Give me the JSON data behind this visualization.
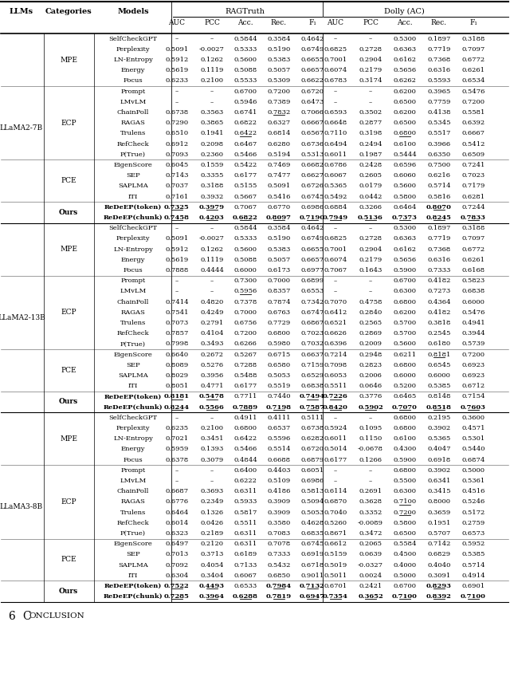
{
  "sections": [
    {
      "llm": "LLaMA2-7B",
      "groups": [
        {
          "category": "MPE",
          "rows": [
            [
              "SelfCheckGPT",
              "–",
              "–",
              "0.5844",
              "0.3584",
              "0.4642",
              "–",
              "–",
              "0.5300",
              "0.1897",
              "0.3188"
            ],
            [
              "Perplexity",
              "0.5091",
              "-0.0027",
              "0.5333",
              "0.5190",
              "0.6749",
              "0.6825",
              "0.2728",
              "0.6363",
              "0.7719",
              "0.7097"
            ],
            [
              "LN-Entropy",
              "0.5912",
              "0.1262",
              "0.5600",
              "0.5383",
              "0.6655",
              "0.7001",
              "0.2904",
              "0.6162",
              "0.7368",
              "0.6772"
            ],
            [
              "Energy",
              "0.5619",
              "0.1119",
              "0.5088",
              "0.5057",
              "0.6657",
              "0.6074",
              "0.2179",
              "0.5656",
              "0.6316",
              "0.6261"
            ],
            [
              "Focus",
              "0.6233",
              "0.2100",
              "0.5533",
              "0.5309",
              "0.6622",
              "0.6783",
              "0.3174",
              "0.6262",
              "0.5593",
              "0.6534"
            ]
          ]
        },
        {
          "category": "ECP",
          "rows": [
            [
              "Prompt",
              "–",
              "–",
              "0.6700",
              "0.7200",
              "0.6720",
              "–",
              "–",
              "0.6200",
              "0.3965",
              "0.5476"
            ],
            [
              "LMvLM",
              "–",
              "–",
              "0.5946",
              "0.7389",
              "0.6473",
              "–",
              "–",
              "0.6500",
              "0.7759",
              "0.7200"
            ],
            [
              "ChainPoll",
              "0.6738",
              "0.3563",
              "0.6741",
              "0.7832",
              "0.7066",
              "0.6593",
              "0.3502",
              "0.6200",
              "0.4138",
              "0.5581"
            ],
            [
              "RAGAS",
              "0.7290",
              "0.3865",
              "0.6822",
              "0.6327",
              "0.6667",
              "0.6648",
              "0.2877",
              "0.6500",
              "0.5345",
              "0.6392"
            ],
            [
              "Trulens",
              "0.6510",
              "0.1941",
              "0.6422",
              "0.6814",
              "0.6567",
              "0.7110",
              "0.3198",
              "0.6800",
              "0.5517",
              "0.6667"
            ],
            [
              "RefCheck",
              "0.6912",
              "0.2098",
              "0.6467",
              "0.6280",
              "0.6736",
              "0.6494",
              "0.2494",
              "0.6100",
              "0.3966",
              "0.5412"
            ],
            [
              "P(True)",
              "0.7093",
              "0.2360",
              "0.5466",
              "0.5194",
              "0.5313",
              "0.6011",
              "0.1987",
              "0.5444",
              "0.6350",
              "0.6509"
            ]
          ]
        },
        {
          "category": "PCE",
          "rows": [
            [
              "EigenScore",
              "0.6045",
              "0.1559",
              "0.5422",
              "0.7469",
              "0.6682",
              "0.6786",
              "0.2428",
              "0.6596",
              "0.7500",
              "0.7241"
            ],
            [
              "SEP",
              "0.7143",
              "0.3355",
              "0.6177",
              "0.7477",
              "0.6627",
              "0.6067",
              "0.2605",
              "0.6060",
              "0.6216",
              "0.7023"
            ],
            [
              "SAPLMA",
              "0.7037",
              "0.3188",
              "0.5155",
              "0.5091",
              "0.6726",
              "0.5365",
              "0.0179",
              "0.5600",
              "0.5714",
              "0.7179"
            ],
            [
              "ITI",
              "0.7161",
              "0.3932",
              "0.5667",
              "0.5416",
              "0.6745",
              "0.5492",
              "0.0442",
              "0.5800",
              "0.5816",
              "0.6281"
            ]
          ]
        },
        {
          "category": "Ours",
          "rows": [
            [
              "ReDeEP(token)",
              "0.7325",
              "0.3979",
              "0.7067",
              "0.6770",
              "0.6986",
              "0.6884",
              "0.3266",
              "0.6464",
              "0.8070",
              "0.7244"
            ],
            [
              "ReDeEP(chunk)",
              "0.7458",
              "0.4203",
              "0.6822",
              "0.8097",
              "0.7190",
              "0.7949",
              "0.5136",
              "0.7373",
              "0.8245",
              "0.7833"
            ]
          ]
        }
      ]
    },
    {
      "llm": "LLaMA2-13B",
      "groups": [
        {
          "category": "MPE",
          "rows": [
            [
              "SelfCheckGPT",
              "–",
              "–",
              "0.5844",
              "0.3584",
              "0.4642",
              "–",
              "–",
              "0.5300",
              "0.1897",
              "0.3188"
            ],
            [
              "Perplexity",
              "0.5091",
              "-0.0027",
              "0.5333",
              "0.5190",
              "0.6749",
              "0.6825",
              "0.2728",
              "0.6363",
              "0.7719",
              "0.7097"
            ],
            [
              "LN-Entropy",
              "0.5912",
              "0.1262",
              "0.5600",
              "0.5383",
              "0.6655",
              "0.7001",
              "0.2904",
              "0.6162",
              "0.7368",
              "0.6772"
            ],
            [
              "Energy",
              "0.5619",
              "0.1119",
              "0.5088",
              "0.5057",
              "0.6657",
              "0.6074",
              "0.2179",
              "0.5656",
              "0.6316",
              "0.6261"
            ],
            [
              "Focus",
              "0.7888",
              "0.4444",
              "0.6000",
              "0.6173",
              "0.6977",
              "0.7067",
              "0.1643",
              "0.5900",
              "0.7333",
              "0.6168"
            ]
          ]
        },
        {
          "category": "ECP",
          "rows": [
            [
              "Prompt",
              "–",
              "–",
              "0.7300",
              "0.7000",
              "0.6899",
              "–",
              "–",
              "0.6700",
              "0.4182",
              "0.5823"
            ],
            [
              "LMvLM",
              "–",
              "–",
              "0.5956",
              "0.8357",
              "0.6553",
              "–",
              "–",
              "0.6300",
              "0.7273",
              "0.6838"
            ],
            [
              "ChainPoll",
              "0.7414",
              "0.4820",
              "0.7378",
              "0.7874",
              "0.7342",
              "0.7070",
              "0.4758",
              "0.6800",
              "0.4364",
              "0.6000"
            ],
            [
              "RAGAS",
              "0.7541",
              "0.4249",
              "0.7000",
              "0.6763",
              "0.6747",
              "0.6412",
              "0.2840",
              "0.6200",
              "0.4182",
              "0.5476"
            ],
            [
              "Trulens",
              "0.7073",
              "0.2791",
              "0.6756",
              "0.7729",
              "0.6867",
              "0.6521",
              "0.2565",
              "0.5700",
              "0.3818",
              "0.4941"
            ],
            [
              "RefCheck",
              "0.7857",
              "0.4104",
              "0.7200",
              "0.6800",
              "0.7023",
              "0.6626",
              "0.2869",
              "0.5700",
              "0.2545",
              "0.3944"
            ],
            [
              "P(True)",
              "0.7998",
              "0.3493",
              "0.6266",
              "0.5980",
              "0.7032",
              "0.6396",
              "0.2009",
              "0.5600",
              "0.6180",
              "0.5739"
            ]
          ]
        },
        {
          "category": "PCE",
          "rows": [
            [
              "EigenScore",
              "0.6640",
              "0.2672",
              "0.5267",
              "0.6715",
              "0.6637",
              "0.7214",
              "0.2948",
              "0.6211",
              "0.8181",
              "0.7200"
            ],
            [
              "SEP",
              "0.8089",
              "0.5276",
              "0.7288",
              "0.6580",
              "0.7159",
              "0.7098",
              "0.2823",
              "0.6800",
              "0.6545",
              "0.6923"
            ],
            [
              "SAPLMA",
              "0.8029",
              "0.3956",
              "0.5488",
              "0.5053",
              "0.6529",
              "0.6053",
              "0.2006",
              "0.6000",
              "0.6000",
              "0.6923"
            ],
            [
              "ITI",
              "0.8051",
              "0.4771",
              "0.6177",
              "0.5519",
              "0.6838",
              "0.5511",
              "0.0646",
              "0.5200",
              "0.5385",
              "0.6712"
            ]
          ]
        },
        {
          "category": "Ours",
          "rows": [
            [
              "ReDeEP(token)",
              "0.8181",
              "0.5478",
              "0.7711",
              "0.7440",
              "0.7494",
              "0.7226",
              "0.3776",
              "0.6465",
              "0.8148",
              "0.7154"
            ],
            [
              "ReDeEP(chunk)",
              "0.8244",
              "0.5566",
              "0.7889",
              "0.7198",
              "0.7587",
              "0.8420",
              "0.5902",
              "0.7070",
              "0.8518",
              "0.7603"
            ]
          ]
        }
      ]
    },
    {
      "llm": "LLaMA3-8B",
      "groups": [
        {
          "category": "MPE",
          "rows": [
            [
              "SelfCheckGPT",
              "–",
              "–",
              "0.4911",
              "0.4111",
              "0.5111",
              "–",
              "–",
              "0.6800",
              "0.2195",
              "0.3600"
            ],
            [
              "Perplexity",
              "0.6235",
              "0.2100",
              "0.6800",
              "0.6537",
              "0.6738",
              "0.5924",
              "0.1095",
              "0.6800",
              "0.3902",
              "0.4571"
            ],
            [
              "LN-Entropy",
              "0.7021",
              "0.3451",
              "0.6422",
              "0.5596",
              "0.6282",
              "0.6011",
              "0.1150",
              "0.6100",
              "0.5365",
              "0.5301"
            ],
            [
              "Energy",
              "0.5959",
              "0.1393",
              "0.5466",
              "0.5514",
              "0.6720",
              "0.5014",
              "-0.0678",
              "0.4300",
              "0.4047",
              "0.5440"
            ],
            [
              "Focus",
              "0.6378",
              "0.3079",
              "0.4844",
              "0.6688",
              "0.6879",
              "0.6177",
              "0.1266",
              "0.5900",
              "0.6918",
              "0.6874"
            ]
          ]
        },
        {
          "category": "ECP",
          "rows": [
            [
              "Prompt",
              "–",
              "–",
              "0.6400",
              "0.4403",
              "0.6051",
              "–",
              "–",
              "0.6800",
              "0.3902",
              "0.5000"
            ],
            [
              "LMvLM",
              "–",
              "–",
              "0.6222",
              "0.5109",
              "0.6986",
              "–",
              "–",
              "0.5500",
              "0.6341",
              "0.5361"
            ],
            [
              "ChainPoll",
              "0.6687",
              "0.3693",
              "0.6311",
              "0.4186",
              "0.5813",
              "0.6114",
              "0.2691",
              "0.6300",
              "0.3415",
              "0.4516"
            ],
            [
              "RAGAS",
              "0.6776",
              "0.2349",
              "0.5933",
              "0.3909",
              "0.5094",
              "0.6870",
              "0.3628",
              "0.7100",
              "0.8000",
              "0.5246"
            ],
            [
              "Trulens",
              "0.6464",
              "0.1326",
              "0.5817",
              "0.3909",
              "0.5053",
              "0.7040",
              "0.3352",
              "0.7200",
              "0.3659",
              "0.5172"
            ],
            [
              "RefCheck",
              "0.6014",
              "0.0426",
              "0.5511",
              "0.3580",
              "0.4628",
              "0.5260",
              "-0.0089",
              "0.5800",
              "0.1951",
              "0.2759"
            ],
            [
              "P(True)",
              "0.6323",
              "0.2189",
              "0.6311",
              "0.7083",
              "0.6835",
              "0.8671",
              "0.3472",
              "0.6500",
              "0.5707",
              "0.6573"
            ]
          ]
        },
        {
          "category": "PCE",
          "rows": [
            [
              "EigenScore",
              "0.6497",
              "0.2120",
              "0.6311",
              "0.7078",
              "0.6745",
              "0.6612",
              "0.2065",
              "0.5584",
              "0.7142",
              "0.5952"
            ],
            [
              "SEP",
              "0.7013",
              "0.3713",
              "0.6189",
              "0.7333",
              "0.6919",
              "0.5159",
              "0.0639",
              "0.4500",
              "0.6829",
              "0.5385"
            ],
            [
              "SAPLMA",
              "0.7092",
              "0.4054",
              "0.7133",
              "0.5432",
              "0.6718",
              "0.5019",
              "-0.0327",
              "0.4000",
              "0.4040",
              "0.5714"
            ],
            [
              "ITI",
              "0.6304",
              "0.3404",
              "0.6067",
              "0.6850",
              "0.9011",
              "0.5011",
              "0.0024",
              "0.5000",
              "0.3091",
              "0.4914"
            ]
          ]
        },
        {
          "category": "Ours",
          "rows": [
            [
              "ReDeEP(token)",
              "0.7522",
              "0.4493",
              "0.6533",
              "0.7984",
              "0.7132",
              "0.6701",
              "0.2421",
              "0.6700",
              "0.8293",
              "0.6901"
            ],
            [
              "ReDeEP(chunk)",
              "0.7285",
              "0.3964",
              "0.6288",
              "0.7819",
              "0.6947",
              "0.7354",
              "0.3652",
              "0.7100",
              "0.8392",
              "0.7100"
            ]
          ]
        }
      ]
    }
  ],
  "bold_cells": {
    "LLaMA2-7B": {
      "Ours": {
        "ReDeEP(token)": [
          3,
          4,
          11
        ],
        "ReDeEP(chunk)": [
          3,
          4,
          5,
          6,
          7,
          8,
          9,
          10,
          11,
          12
        ]
      }
    },
    "LLaMA2-13B": {
      "Ours": {
        "ReDeEP(token)": [
          3,
          4,
          7,
          8
        ],
        "ReDeEP(chunk)": [
          3,
          4,
          5,
          6,
          7,
          8,
          9,
          10,
          11,
          12
        ]
      }
    },
    "LLaMA3-8B": {
      "Ours": {
        "ReDeEP(token)": [
          3,
          4,
          6,
          7,
          11
        ],
        "ReDeEP(chunk)": [
          3,
          4,
          5,
          6,
          7,
          8,
          9,
          10,
          11,
          12
        ]
      }
    }
  },
  "ul_cells": {
    "LLaMA2-7B": {
      "ECP": {
        "ChainPoll": [
          6
        ],
        "Trulens": [
          5,
          10
        ]
      },
      "Ours": {
        "ReDeEP(token)": [
          3,
          4,
          11
        ],
        "ReDeEP(chunk)": [
          3,
          4,
          5,
          6,
          7,
          8,
          9,
          10,
          11,
          12
        ]
      }
    },
    "LLaMA2-13B": {
      "ECP": {
        "LMvLM": [
          5
        ]
      },
      "PCE": {
        "EigenScore": [
          11
        ]
      },
      "Ours": {
        "ReDeEP(token)": [
          3,
          4,
          7,
          8
        ],
        "ReDeEP(chunk)": [
          3,
          4,
          5,
          6,
          7,
          8,
          9,
          10,
          11,
          12
        ]
      }
    },
    "LLaMA3-8B": {
      "ECP": {
        "RAGAS": [
          10
        ],
        "Trulens": [
          10
        ]
      },
      "Ours": {
        "ReDeEP(token)": [
          3,
          4,
          6,
          7,
          11
        ],
        "ReDeEP(chunk)": [
          3,
          4,
          5,
          6,
          7,
          8,
          9,
          10,
          11,
          12
        ]
      }
    }
  }
}
